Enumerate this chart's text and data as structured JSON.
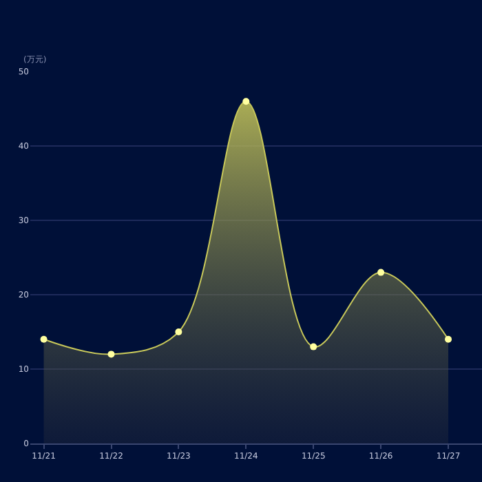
{
  "chart_data": {
    "type": "area",
    "ylabel": "(万元)",
    "categories": [
      "11/21",
      "11/22",
      "11/23",
      "11/24",
      "11/25",
      "11/26",
      "11/27"
    ],
    "series": [
      {
        "color": "#c8c85a",
        "values": [
          14,
          12,
          15,
          46,
          13,
          23,
          14
        ]
      }
    ],
    "ylim": [
      0,
      50
    ],
    "yticks": [
      0,
      10,
      20,
      30,
      40,
      50
    ],
    "grid": "y",
    "marker": "circle",
    "line_style": "solid",
    "legend": false
  }
}
